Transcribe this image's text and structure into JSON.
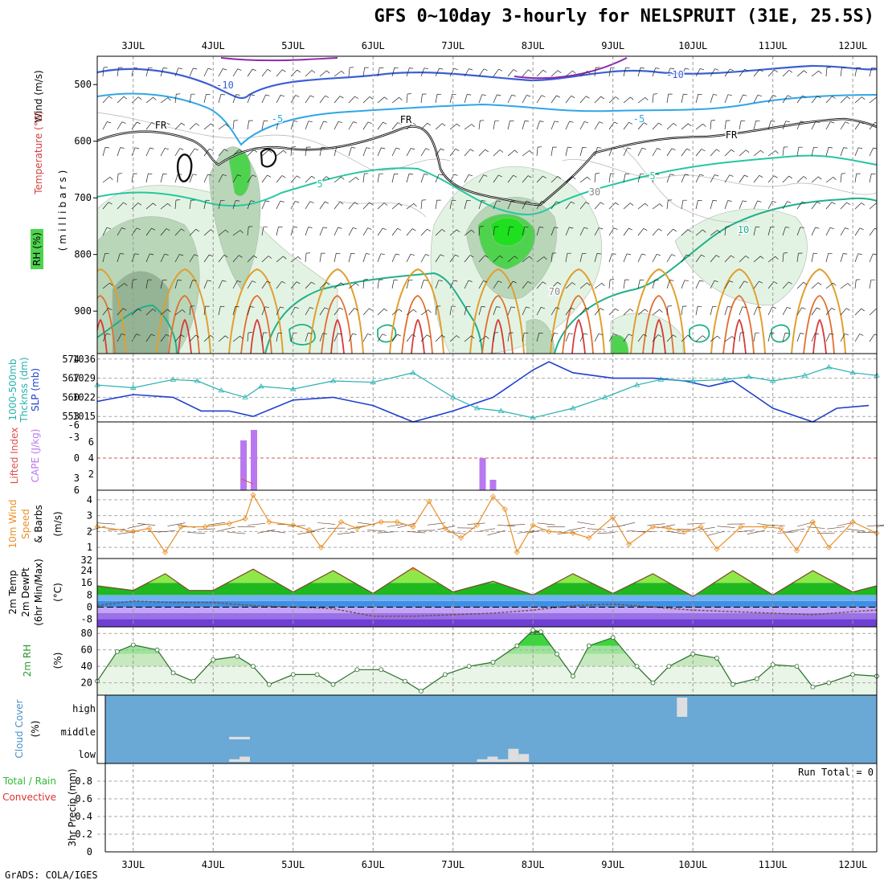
{
  "title": "GFS 0~10day 3-hourly for NELSPRUIT (31E, 25.5S)",
  "footer": "GrADS: COLA/IGES",
  "time_axis": {
    "dates": [
      "3JUL",
      "4JUL",
      "5JUL",
      "6JUL",
      "7JUL",
      "8JUL",
      "9JUL",
      "10JUL",
      "11JUL",
      "12JUL"
    ],
    "start_day": 2.55,
    "end_day": 12.3
  },
  "chart_data": [
    {
      "type": "contour",
      "name": "upper-air",
      "ylabels": [
        "Wind (m/s)",
        "Temperature (°C)",
        "RH (%)",
        "(millibars)"
      ],
      "yticks": [
        500,
        600,
        700,
        800,
        900
      ],
      "ylim": [
        975,
        450
      ],
      "contour_labels": [
        "-10",
        "-5",
        "5",
        "10",
        "FR",
        "30",
        "70"
      ],
      "colors": {
        "rh_light": "#e3f3e3",
        "rh_mid": "#b9d6b9",
        "rh_dark": "#95b395",
        "rh_green": "#4fd34f",
        "t_minus10": "#3a5fd6",
        "t_minus5": "#2fa6e8",
        "t_plus": "#26c7a0",
        "t_warm": "#e0a030",
        "t_hot": "#d83a3a"
      }
    },
    {
      "type": "line",
      "name": "thickness-slp",
      "ylabels": [
        "1000-500mb",
        "Thcknss (dm)",
        "SLP (mb)"
      ],
      "left_ticks": [
        553,
        560,
        567,
        574
      ],
      "right_ticks": [
        1015,
        1022,
        1029,
        1036
      ],
      "left_ylim": [
        551,
        576
      ],
      "right_ylim": [
        1013,
        1038
      ],
      "series": [
        {
          "name": "SLP",
          "color": "#1f3fd0",
          "x": [
            2.55,
            3,
            3.5,
            3.85,
            4.2,
            4.5,
            5,
            5.5,
            6,
            6.5,
            7,
            7.5,
            8,
            8.2,
            8.5,
            9,
            9.5,
            9.9,
            10.2,
            10.5,
            10.8,
            11,
            11.5,
            11.8,
            12.2
          ],
          "values": [
            1020.5,
            1023,
            1022,
            1017,
            1017,
            1015,
            1021,
            1022,
            1019,
            1013,
            1017,
            1022,
            1032,
            1035,
            1031,
            1029,
            1029,
            1028,
            1026,
            1028,
            1022,
            1018,
            1013,
            1018,
            1019
          ]
        },
        {
          "name": "Thickness",
          "color": "#26b0b0",
          "x": [
            2.55,
            3,
            3.5,
            3.8,
            4.1,
            4.4,
            4.6,
            5,
            5.5,
            6,
            6.5,
            7,
            7.3,
            7.6,
            8,
            8.5,
            8.9,
            9.3,
            9.6,
            10,
            10.4,
            10.7,
            11,
            11.4,
            11.7,
            12,
            12.3
          ],
          "values": [
            564.5,
            563.5,
            566.5,
            566,
            562.5,
            560,
            564,
            563,
            566,
            565.5,
            569,
            560,
            556,
            555,
            552.5,
            556,
            560,
            564.5,
            566.5,
            566,
            566.5,
            567.5,
            566,
            568,
            571,
            569,
            568
          ]
        }
      ]
    },
    {
      "type": "bar",
      "name": "cape-li",
      "ylabels": [
        "Lifted Index",
        "CAPE (J/kg)"
      ],
      "left_ticks": [
        "-3",
        "0",
        "3",
        "6"
      ],
      "left_top": "-6",
      "right_ticks": [
        2,
        4,
        6
      ],
      "cape_ylim": [
        0,
        8.5
      ],
      "bars": [
        {
          "x": 4.38,
          "value": 6.2
        },
        {
          "x": 4.51,
          "value": 7.5
        },
        {
          "x": 7.37,
          "value": 4.0
        },
        {
          "x": 7.5,
          "value": 1.3
        }
      ],
      "colors": {
        "cape": "#b978f0",
        "li": "#e05050"
      }
    },
    {
      "type": "line",
      "name": "wind10m",
      "ylabels": [
        "10m Wind",
        "Speed",
        "& Barbs",
        "(m/s)"
      ],
      "yticks": [
        1,
        2,
        3,
        4
      ],
      "ylim": [
        0.3,
        4.6
      ],
      "series": [
        {
          "name": "Speed",
          "color": "#e89028",
          "x": [
            2.55,
            3,
            3.2,
            3.4,
            3.6,
            3.9,
            4.2,
            4.4,
            4.5,
            4.7,
            5,
            5.2,
            5.35,
            5.6,
            5.8,
            6.1,
            6.3,
            6.5,
            6.7,
            6.9,
            7.1,
            7.3,
            7.5,
            7.65,
            7.8,
            8,
            8.2,
            8.5,
            8.7,
            9,
            9.2,
            9.5,
            9.7,
            9.9,
            10.1,
            10.3,
            10.6,
            10.9,
            11.1,
            11.3,
            11.5,
            11.7,
            12,
            12.3
          ],
          "values": [
            2.3,
            2.0,
            2.2,
            0.7,
            2.3,
            2.3,
            2.5,
            2.8,
            4.3,
            2.6,
            2.4,
            2.1,
            1.0,
            2.6,
            2.2,
            2.6,
            2.6,
            2.3,
            3.9,
            2.2,
            1.6,
            2.4,
            4.2,
            3.4,
            0.7,
            2.4,
            2.0,
            1.9,
            1.6,
            2.9,
            1.2,
            2.3,
            2.2,
            2.0,
            2.3,
            0.9,
            2.3,
            2.3,
            2.2,
            0.8,
            2.6,
            1.0,
            2.6,
            1.9
          ]
        }
      ]
    },
    {
      "type": "area",
      "name": "temp2m",
      "ylabels": [
        "2m Temp",
        "2m DewPt",
        "(6hr Min/Max)",
        "(°C)"
      ],
      "yticks": [
        -8,
        0,
        8,
        16,
        24
      ],
      "top_label": "32",
      "ylim": [
        -13,
        32
      ],
      "series": [
        {
          "name": "Temp",
          "color": "#7a4a2a",
          "x": [
            2.55,
            3,
            3.4,
            3.7,
            4.0,
            4.5,
            5.0,
            5.5,
            6.0,
            6.5,
            7.0,
            7.5,
            8.0,
            8.5,
            9.0,
            9.5,
            10.0,
            10.5,
            11.0,
            11.5,
            12.0,
            12.3
          ],
          "values": [
            14,
            11,
            22,
            11,
            11,
            25,
            10,
            24,
            9,
            26,
            10,
            17,
            8,
            22,
            9,
            22,
            7,
            24,
            8,
            24,
            10,
            14
          ]
        },
        {
          "name": "DewPt",
          "color": "#7a4a3a",
          "x": [
            2.55,
            3,
            3.5,
            4,
            4.5,
            5,
            5.5,
            6,
            6.5,
            7,
            7.5,
            8,
            8.5,
            9,
            9.5,
            10,
            10.5,
            11,
            11.5,
            12,
            12.3
          ],
          "values": [
            1,
            4,
            3,
            3,
            1,
            0,
            -1,
            -6,
            -6,
            -5,
            -4,
            -2,
            1,
            2,
            0,
            -2,
            -3,
            -4,
            -5,
            -3,
            -2
          ]
        }
      ],
      "band_colors": [
        "#6f3fd4",
        "#9a72e6",
        "#c4a4f6",
        "#3f8fe6",
        "#6fb3f2",
        "#1fb81f",
        "#8ee84a",
        "#f0a020"
      ]
    },
    {
      "type": "area",
      "name": "rh2m",
      "ylabels": [
        "2m RH",
        "(%)"
      ],
      "yticks": [
        20,
        40,
        60,
        80
      ],
      "ylim": [
        5,
        88
      ],
      "series": [
        {
          "name": "RH",
          "color": "#2a6e2a",
          "x": [
            2.55,
            2.8,
            3.0,
            3.3,
            3.5,
            3.75,
            4.0,
            4.3,
            4.5,
            4.7,
            5.0,
            5.3,
            5.5,
            5.8,
            6.1,
            6.4,
            6.6,
            6.9,
            7.2,
            7.5,
            7.8,
            8.0,
            8.1,
            8.3,
            8.5,
            8.7,
            9.0,
            9.3,
            9.5,
            9.7,
            10.0,
            10.3,
            10.5,
            10.8,
            11.0,
            11.3,
            11.5,
            11.7,
            12.0,
            12.3
          ],
          "values": [
            22,
            58,
            66,
            60,
            32,
            22,
            48,
            52,
            40,
            18,
            30,
            30,
            18,
            36,
            36,
            22,
            10,
            30,
            40,
            45,
            65,
            84,
            82,
            55,
            28,
            65,
            75,
            40,
            20,
            40,
            55,
            50,
            18,
            25,
            42,
            40,
            15,
            20,
            30,
            28
          ]
        }
      ],
      "band_colors": [
        "#e9f5e6",
        "#c8e8c0",
        "#9de39a",
        "#3ed43e",
        "#1a9a1a"
      ]
    },
    {
      "type": "bar",
      "name": "cloud",
      "ylabels": [
        "Cloud Cover",
        "(%)"
      ],
      "yticklabels": [
        "high",
        "middle",
        "low"
      ],
      "colors": {
        "sky": "#6aa8d6",
        "cloud": "#dedede"
      },
      "low_blocks": [
        [
          4.2,
          4.33,
          1
        ],
        [
          4.33,
          4.46,
          2
        ],
        [
          7.3,
          7.43,
          1
        ],
        [
          7.43,
          7.56,
          2
        ],
        [
          7.56,
          7.69,
          1
        ],
        [
          7.69,
          7.82,
          5
        ],
        [
          7.82,
          7.95,
          3
        ]
      ],
      "mid_blocks": [
        [
          4.2,
          4.33,
          1
        ],
        [
          4.33,
          4.46,
          1
        ]
      ],
      "high_blocks": [
        [
          9.8,
          9.93,
          8
        ]
      ]
    },
    {
      "type": "bar",
      "name": "precip",
      "ylabels": [
        "Total / Rain",
        "Convective",
        "3hr Precip (mm)"
      ],
      "yticks": [
        "0",
        "0.2",
        "0.4",
        "0.6",
        "0.8"
      ],
      "ylim": [
        0,
        1.0
      ],
      "run_total": "Run Total = 0",
      "colors": {
        "total": "#33b833",
        "convective": "#e03030"
      },
      "values": []
    }
  ]
}
